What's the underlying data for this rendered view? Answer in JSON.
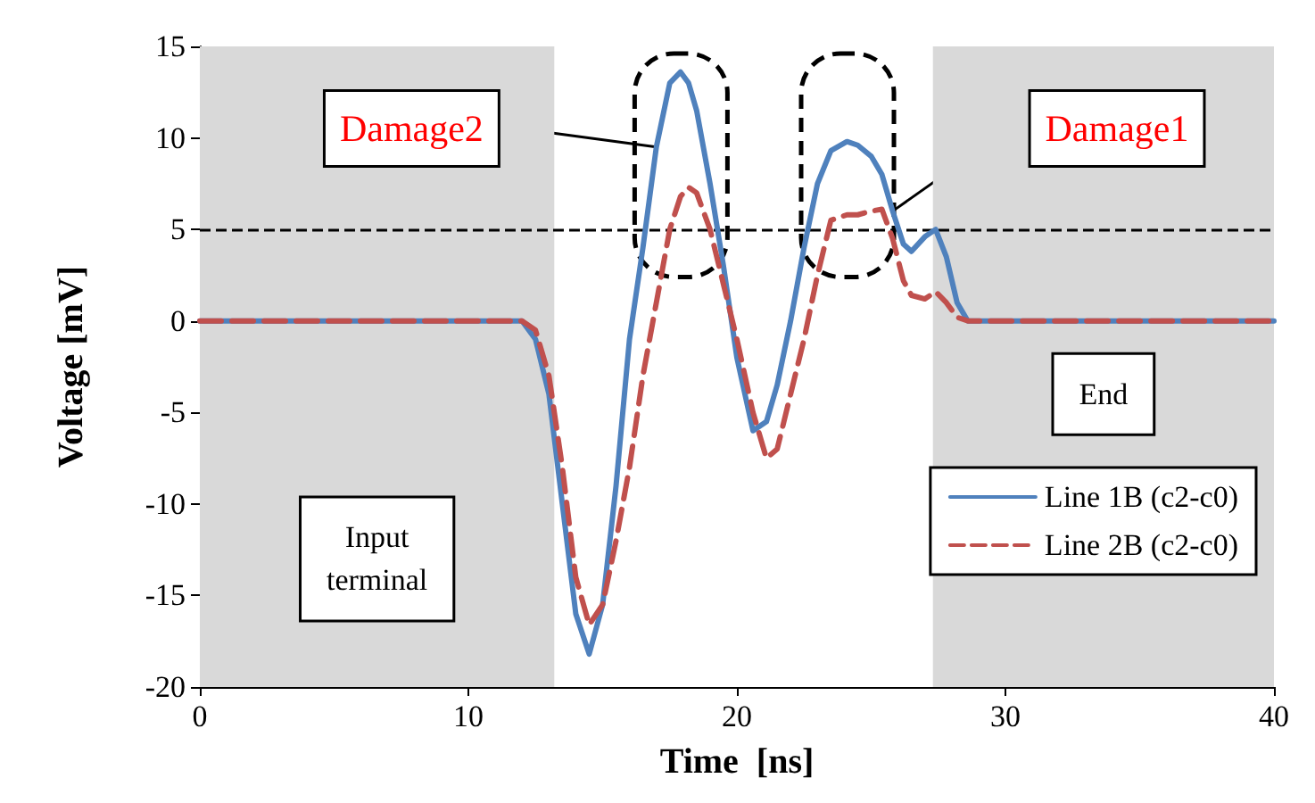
{
  "chart_data": {
    "type": "line",
    "xlabel": "Time  [ns]",
    "ylabel": "Voltage [mV]",
    "x": [
      0,
      12,
      12.5,
      13,
      13.5,
      14,
      14.5,
      15,
      15.5,
      16,
      16.5,
      17,
      17.5,
      17.9,
      18.2,
      18.5,
      19,
      19.5,
      20,
      20.6,
      21.1,
      21.5,
      22,
      22.5,
      23,
      23.5,
      24.1,
      24.5,
      25,
      25.4,
      25.8,
      26.2,
      26.5,
      27,
      27.4,
      27.8,
      28.2,
      28.6,
      40
    ],
    "series": [
      {
        "name": "Line 1B (c2-c0)",
        "color": "#4f81bd",
        "line_style": "solid",
        "values": [
          0,
          0,
          -1,
          -4,
          -10,
          -16,
          -18.2,
          -15.5,
          -9,
          -1,
          4,
          9.5,
          13,
          13.6,
          13,
          11.5,
          7.5,
          3,
          -2,
          -6,
          -5.5,
          -3.5,
          0,
          4,
          7.5,
          9.3,
          9.8,
          9.6,
          9,
          8,
          6,
          4.2,
          3.8,
          4.6,
          5,
          3.5,
          1,
          0,
          0
        ]
      },
      {
        "name": "Line 2B (c2-c0)",
        "color": "#c0504d",
        "line_style": "dashed",
        "values": [
          0,
          0,
          -0.5,
          -3,
          -8,
          -14,
          -16.6,
          -15.5,
          -12,
          -8,
          -3,
          1,
          5,
          6.8,
          7.3,
          7,
          5,
          2,
          -1,
          -5,
          -7.5,
          -7,
          -4,
          -1,
          2.5,
          5.5,
          5.8,
          5.8,
          6,
          6.1,
          4.5,
          2.2,
          1.4,
          1.2,
          1.6,
          1,
          0.2,
          0,
          0
        ]
      }
    ],
    "xlim": [
      0,
      40
    ],
    "xticks": [
      0,
      10,
      20,
      30,
      40
    ],
    "ylim": [
      -20,
      15
    ],
    "yticks": [
      -20,
      -15,
      -10,
      -5,
      0,
      5,
      10,
      15
    ],
    "ref_lines": [
      {
        "axis": "y",
        "value": 5,
        "color": "#000000",
        "line_style": "dashed"
      }
    ],
    "bands": [
      {
        "axis": "x",
        "from": 0,
        "to": 13.2,
        "label": "Input terminal",
        "color": "#d9d9d9"
      },
      {
        "axis": "x",
        "from": 27.3,
        "to": 40,
        "label": "End",
        "color": "#d9d9d9"
      }
    ],
    "annotations": [
      {
        "text": "Damage2",
        "x": 17,
        "y": 9.5
      },
      {
        "text": "Damage1",
        "x": 25.8,
        "y": 6
      }
    ],
    "grid": false,
    "legend": "bottom right",
    "marker": "none"
  }
}
